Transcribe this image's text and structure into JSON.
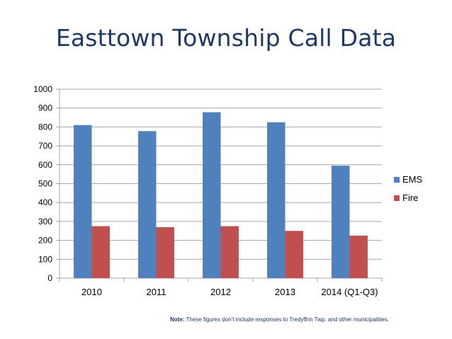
{
  "slide": {
    "title": "Easttown Township Call Data",
    "note_label": "Note:",
    "note_text": " These figures don’t include responses to Tredyffrin Twp. and other municipalities."
  },
  "colors": {
    "title": "#1f3864",
    "ems": "#4f81bd",
    "fire": "#c0504d",
    "grid": "#a6a6a6",
    "text": "#000000"
  },
  "chart_data": {
    "type": "bar",
    "title": "",
    "xlabel": "",
    "ylabel": "",
    "categories": [
      "2010",
      "2011",
      "2012",
      "2013",
      "2014 (Q1-Q3)"
    ],
    "series": [
      {
        "name": "EMS",
        "values": [
          810,
          778,
          878,
          825,
          595
        ]
      },
      {
        "name": "Fire",
        "values": [
          275,
          270,
          275,
          250,
          225
        ]
      }
    ],
    "ylim": [
      0,
      1000
    ],
    "yticks": [
      0,
      100,
      200,
      300,
      400,
      500,
      600,
      700,
      800,
      900,
      1000
    ],
    "grid": true,
    "legend": "right"
  }
}
